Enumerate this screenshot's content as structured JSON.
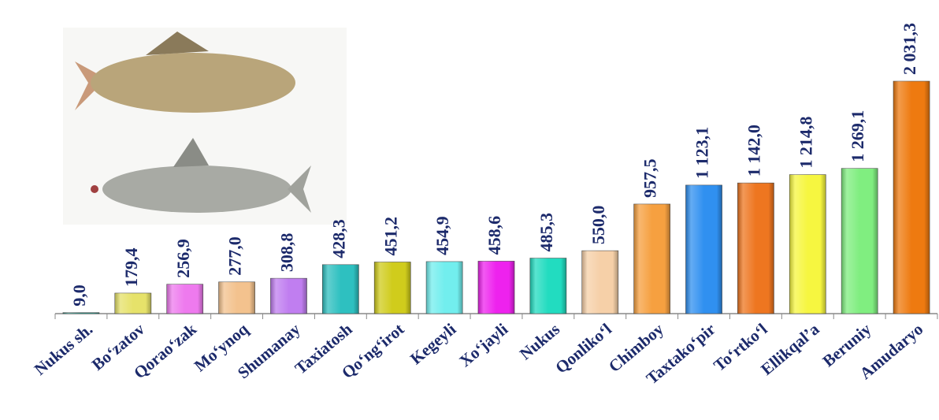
{
  "chart_data": {
    "type": "bar",
    "categories": [
      "Nukus sh.",
      "Bo‘zatov",
      "Qorao‘zak",
      "Mo‘ynoq",
      "Shumanay",
      "Taxiatosh",
      "Qo‘ng‘irot",
      "Kegeyli",
      "Xo‘jayli",
      "Nukus",
      "Qonliko‘l",
      "Chimboy",
      "Taxtako‘pir",
      "To‘rtko‘l",
      "Ellikqal’a",
      "Beruniy",
      "Amudaryo"
    ],
    "values": [
      9.0,
      179.4,
      256.9,
      277.0,
      308.8,
      428.3,
      451.2,
      454.9,
      458.6,
      485.3,
      550.0,
      957.5,
      1123.1,
      1142.0,
      1214.8,
      1269.1,
      2031.3
    ],
    "value_labels": [
      "9,0",
      "179,4",
      "256,9",
      "277,0",
      "308,8",
      "428,3",
      "451,2",
      "454,9",
      "458,6",
      "485,3",
      "550,0",
      "957,5",
      "1 123,1",
      "1 142,0",
      "1 214,8",
      "1 269,1",
      "2 031,3"
    ],
    "colors": [
      "#2a9d8f",
      "#e6e26a",
      "#ee7aee",
      "#f3c28e",
      "#c07ef0",
      "#2ec0c0",
      "#d0cc1c",
      "#72eeee",
      "#ee22ee",
      "#22dcc0",
      "#f6d0a8",
      "#f6a040",
      "#3090f0",
      "#ee7620",
      "#f6f640",
      "#80ee80",
      "#ee7a10"
    ]
  }
}
